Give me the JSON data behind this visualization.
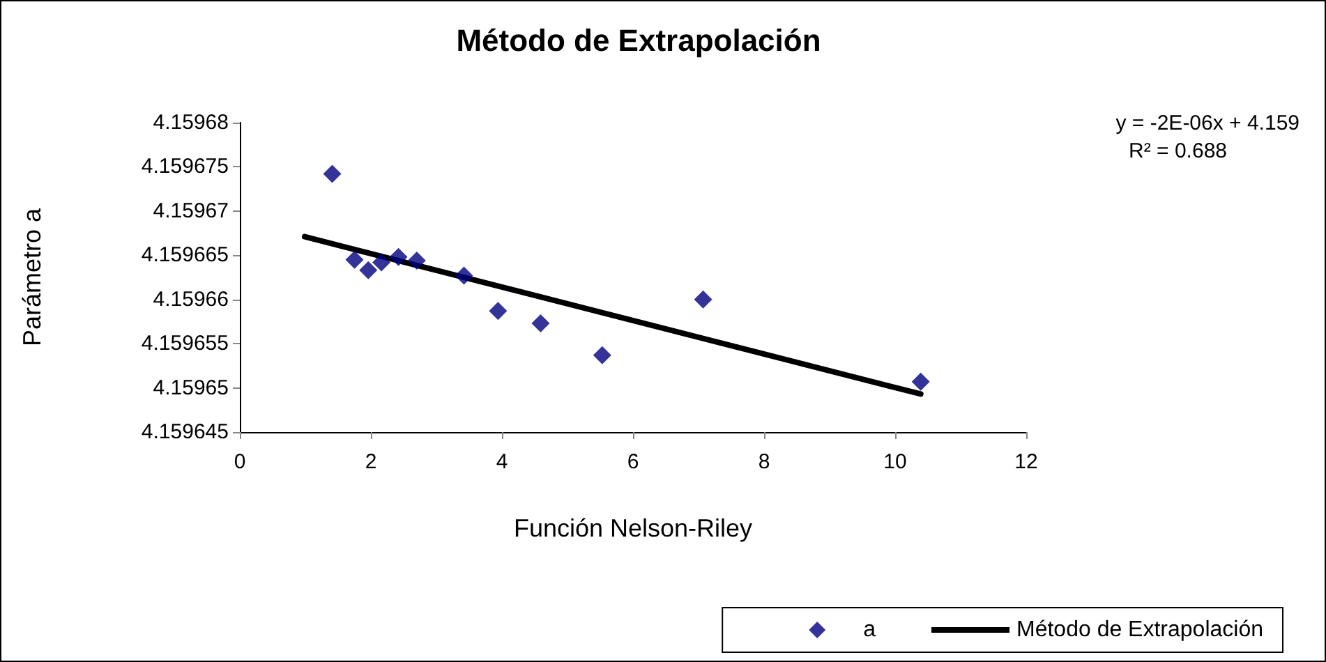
{
  "chart_data": {
    "type": "scatter",
    "title": "Método de Extrapolación",
    "xlabel": "Función Nelson-Riley",
    "ylabel": "Parámetro a",
    "annotations": [
      "y = -2E-06x + 4.159",
      "R² = 0.688"
    ],
    "series": [
      {
        "name": "a",
        "color": "#000080",
        "marker": "diamond",
        "x": [
          1.41,
          1.75,
          1.96,
          2.16,
          2.42,
          2.7,
          3.42,
          3.94,
          4.59,
          5.53,
          7.07,
          10.39
        ],
        "values": [
          4.1596742,
          4.1596645,
          4.1596633,
          4.1596642,
          4.1596648,
          4.1596644,
          4.1596627,
          4.1596587,
          4.1596573,
          4.1596537,
          4.15966,
          4.1596507
        ]
      },
      {
        "name": "Método de Extrapolación",
        "type": "line",
        "color": "#000000",
        "marker": "none",
        "line_style": "solid",
        "x": [
          0.99,
          10.39
        ],
        "values": [
          4.1596671,
          4.1596493
        ]
      }
    ],
    "xlim": [
      0,
      12
    ],
    "xticks": [
      0,
      2,
      4,
      6,
      8,
      10,
      12
    ],
    "ylim": [
      4.159645,
      4.15968
    ],
    "yticks": [
      4.159645,
      4.15965,
      4.159655,
      4.15966,
      4.159665,
      4.15967,
      4.159675,
      4.15968
    ],
    "grid": false,
    "legend": "bottom right"
  }
}
